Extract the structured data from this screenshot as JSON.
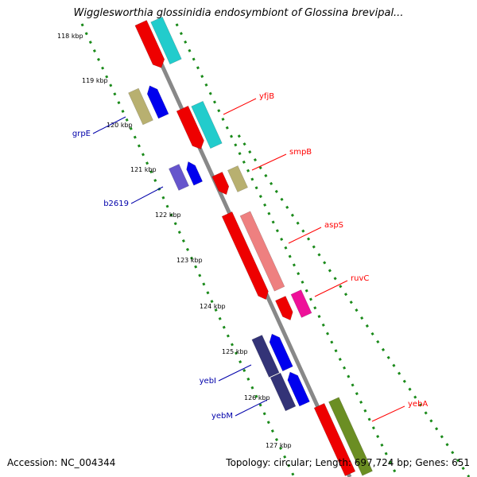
{
  "title": "Wigglesworthia glossinidia endosymbiont of Glossina brevipal...",
  "ticks": [
    "118 kbp",
    "119 kbp",
    "120 kbp",
    "121 kbp",
    "122 kbp",
    "123 kbp",
    "124 kbp",
    "125 kbp",
    "126 kbp",
    "127 kbp"
  ],
  "genes": [
    {
      "name": "yfjB",
      "strand": "forward",
      "color": "#ff0000"
    },
    {
      "name": "smpB",
      "strand": "forward",
      "color": "#ff0000"
    },
    {
      "name": "aspS",
      "strand": "forward",
      "color": "#ff0000"
    },
    {
      "name": "ruvC",
      "strand": "forward",
      "color": "#ff0000"
    },
    {
      "name": "yebA",
      "strand": "forward",
      "color": "#ff0000"
    },
    {
      "name": "grpE",
      "strand": "reverse",
      "color": "#0000ff"
    },
    {
      "name": "b2619",
      "strand": "reverse",
      "color": "#0000ff"
    },
    {
      "name": "yebI",
      "strand": "reverse",
      "color": "#0000ff"
    },
    {
      "name": "yebM",
      "strand": "reverse",
      "color": "#0000ff"
    }
  ],
  "colors": {
    "forward_label": "#ff0000",
    "reverse_label": "#0000aa",
    "backbone": "#888888",
    "dots": "#1a8a1a"
  },
  "footer": {
    "accession": "Accession: NC_004344",
    "topology": "Topology: circular; Length: 697,724 bp; Genes: 651"
  }
}
